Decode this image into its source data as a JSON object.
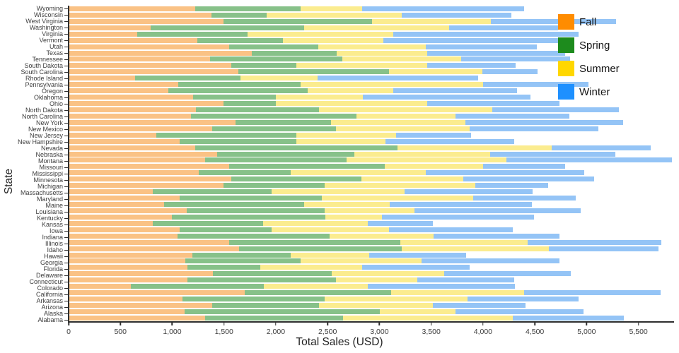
{
  "chart_data": {
    "type": "bar",
    "orientation": "horizontal-stacked",
    "title": "",
    "xlabel": "Total Sales (USD)",
    "ylabel": "State",
    "xlim": [
      0,
      5844
    ],
    "grid": false,
    "legend_position": "top-right",
    "x_tick_values": [
      0,
      500,
      1000,
      1500,
      2000,
      2500,
      3000,
      3500,
      4000,
      4500,
      5000,
      5500
    ],
    "x_tick_labels": [
      "0",
      "500",
      "1,000",
      "1,500",
      "2,000",
      "2,500",
      "3,000",
      "3,500",
      "4,000",
      "4,500",
      "5,000",
      "5,500"
    ],
    "categories_top_to_bottom": [
      "Wyoming",
      "Wisconsin",
      "West Virginia",
      "Washington",
      "Virginia",
      "Vermont",
      "Utah",
      "Texas",
      "Tennessee",
      "South Dakota",
      "South Carolina",
      "Rhode Island",
      "Pennsylvania",
      "Oregon",
      "Oklahoma",
      "Ohio",
      "North Dakota",
      "North Carolina",
      "New York",
      "New Mexico",
      "New Jersey",
      "New Hampshire",
      "Nevada",
      "Nebraska",
      "Montana",
      "Missouri",
      "Mississippi",
      "Minnesota",
      "Michigan",
      "Massachusetts",
      "Maryland",
      "Maine",
      "Louisiana",
      "Kentucky",
      "Kansas",
      "Iowa",
      "Indiana",
      "Illinois",
      "Idaho",
      "Hawaii",
      "Georgia",
      "Florida",
      "Delaware",
      "Connecticut",
      "Colorado",
      "California",
      "Arkansas",
      "Arizona",
      "Alaska",
      "Alabama"
    ],
    "series": [
      {
        "name": "Fall",
        "legend_color": "#FF8C00",
        "bar_color": "#FAC285",
        "values": [
          1220,
          1375,
          1490,
          790,
          660,
          1240,
          1545,
          1765,
          1365,
          1565,
          1635,
          635,
          1055,
          960,
          1200,
          1490,
          1225,
          1175,
          1610,
          1380,
          845,
          1065,
          1220,
          1430,
          1315,
          1545,
          1255,
          1565,
          1490,
          805,
          1070,
          920,
          1135,
          995,
          805,
          1065,
          1045,
          1545,
          1640,
          1190,
          1125,
          1140,
          1390,
          1140,
          595,
          1700,
          1095,
          1380,
          1115,
          1315
        ]
      },
      {
        "name": "Spring",
        "legend_color": "#1D8B1D",
        "bar_color": "#87C189",
        "values": [
          1020,
          535,
          1440,
          1485,
          1065,
          825,
          865,
          825,
          1275,
          630,
          1460,
          1020,
          1180,
          1345,
          795,
          505,
          1190,
          1600,
          920,
          1200,
          1355,
          1130,
          1955,
          1330,
          1370,
          1510,
          885,
          1260,
          980,
          1150,
          1375,
          1350,
          1335,
          1485,
          1070,
          890,
          1475,
          1660,
          1575,
          950,
          1115,
          710,
          1150,
          1440,
          1285,
          1415,
          1375,
          1035,
          1890,
          1335
        ]
      },
      {
        "name": "Summer",
        "legend_color": "#FFD700",
        "bar_color": "#FBEC8F",
        "values": [
          595,
          1305,
          1150,
          1400,
          1410,
          975,
          1040,
          870,
          1150,
          1265,
          900,
          750,
          1765,
          830,
          845,
          1470,
          1675,
          960,
          1305,
          1295,
          960,
          865,
          1490,
          1315,
          1545,
          950,
          1310,
          985,
          1460,
          1290,
          1465,
          830,
          870,
          545,
          1015,
          1140,
          1005,
          1230,
          1425,
          760,
          1170,
          980,
          1090,
          790,
          1010,
          1285,
          1385,
          1100,
          730,
          1640
        ]
      },
      {
        "name": "Winter",
        "legend_color": "#1E90FF",
        "bar_color": "#94C4F6",
        "values": [
          1565,
          1065,
          1210,
          1055,
          1795,
          1755,
          1075,
          1335,
          1055,
          855,
          535,
          1550,
          1025,
          1195,
          1625,
          1280,
          1230,
          1100,
          1520,
          1245,
          725,
          1245,
          960,
          1205,
          1600,
          795,
          1530,
          1265,
          700,
          1235,
          990,
          1375,
          1605,
          1470,
          625,
          1195,
          1215,
          1290,
          1060,
          940,
          1335,
          1045,
          1220,
          935,
          1420,
          1320,
          1070,
          900,
          1240,
          1075
        ]
      }
    ]
  }
}
